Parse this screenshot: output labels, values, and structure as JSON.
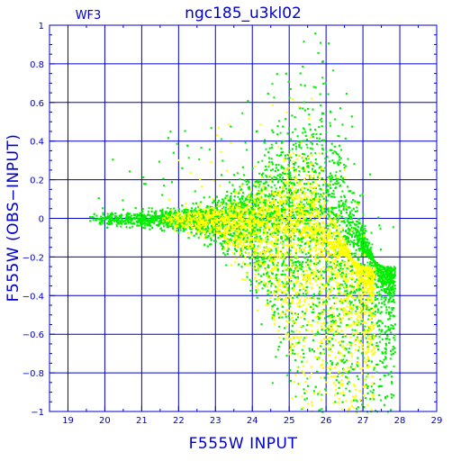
{
  "chart_data": {
    "type": "scatter",
    "title": "ngc185_u3kl02",
    "panel_label": "WF3",
    "xlabel": "F555W  INPUT",
    "ylabel": "F555W  (OBS−INPUT)",
    "xlim": [
      18.5,
      29
    ],
    "ylim": [
      -1,
      1
    ],
    "x_ticks": [
      "19",
      "20",
      "21",
      "22",
      "23",
      "24",
      "25",
      "26",
      "27",
      "28",
      "29"
    ],
    "y_ticks": [
      "1",
      "0.8",
      "0.6",
      "0.4",
      "0.2",
      "0",
      "−0.2",
      "−0.4",
      "−0.6",
      "−0.8",
      "−1"
    ],
    "grid": true,
    "series": [
      {
        "color": "#00ee00",
        "description": "broad artificial-star recovery distribution (green), spans x 19.4–27.8; tight near y=0 for bright stars, fanning out toward faint magnitudes",
        "envelope": [
          {
            "x": 19.5,
            "upper": 0.03,
            "lower": -0.03
          },
          {
            "x": 21.0,
            "upper": 0.04,
            "lower": -0.04
          },
          {
            "x": 22.5,
            "upper": 0.07,
            "lower": -0.08
          },
          {
            "x": 23.5,
            "upper": 0.15,
            "lower": -0.2
          },
          {
            "x": 24.5,
            "upper": 0.35,
            "lower": -0.5
          },
          {
            "x": 25.5,
            "upper": 0.6,
            "lower": -0.9
          },
          {
            "x": 26.0,
            "upper": 0.65,
            "lower": -1.0
          },
          {
            "x": 26.5,
            "upper": 0.3,
            "lower": -1.0
          },
          {
            "x": 27.0,
            "upper": 0.0,
            "lower": -1.0
          },
          {
            "x": 27.5,
            "upper": -0.4,
            "lower": -1.0
          }
        ]
      },
      {
        "color": "#ffff00",
        "description": "second artificial-star sample (yellow) overplotted; concentrated core around x 23–26.5 plus scattered outliers",
        "envelope": [
          {
            "x": 21.5,
            "upper": 0.02,
            "lower": -0.03
          },
          {
            "x": 23.0,
            "upper": 0.07,
            "lower": -0.1
          },
          {
            "x": 24.0,
            "upper": 0.15,
            "lower": -0.3
          },
          {
            "x": 25.0,
            "upper": 0.25,
            "lower": -0.7
          },
          {
            "x": 25.5,
            "upper": 0.3,
            "lower": -0.9
          },
          {
            "x": 26.0,
            "upper": 0.1,
            "lower": -1.0
          },
          {
            "x": 26.5,
            "upper": -0.1,
            "lower": -1.0
          },
          {
            "x": 27.0,
            "upper": -0.4,
            "lower": -1.0
          }
        ]
      }
    ]
  }
}
